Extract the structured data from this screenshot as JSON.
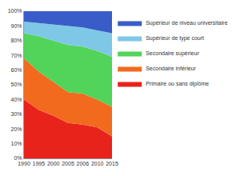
{
  "chart_data": {
    "type": "area",
    "stacked": true,
    "grid": false,
    "legend": "right",
    "categories": [
      "1990",
      "1995",
      "2000",
      "2005",
      "2006",
      "2010",
      "2015"
    ],
    "ylim": [
      0,
      100
    ],
    "yticks": [
      {
        "value": 0,
        "label": "0%"
      },
      {
        "value": 10,
        "label": "10%"
      },
      {
        "value": 20,
        "label": "20%"
      },
      {
        "value": 30,
        "label": "30%"
      },
      {
        "value": 40,
        "label": "40%"
      },
      {
        "value": 50,
        "label": "50%"
      },
      {
        "value": 60,
        "label": "60%"
      },
      {
        "value": 70,
        "label": "70%"
      },
      {
        "value": 80,
        "label": "80%"
      },
      {
        "value": 90,
        "label": "90%"
      },
      {
        "value": 100,
        "label": "100%"
      }
    ],
    "series": [
      {
        "name": "Primaire ou sans diplôme",
        "color": "#e8231b",
        "values": [
          40,
          33,
          29,
          24,
          23,
          21,
          15
        ]
      },
      {
        "name": "Secondaire inférieur",
        "color": "#f26a1e",
        "values": [
          28,
          26,
          23,
          21,
          21,
          19,
          20
        ]
      },
      {
        "name": "Secondaire supérieur",
        "color": "#52d35a",
        "values": [
          17,
          24,
          28,
          32,
          32,
          33,
          34
        ]
      },
      {
        "name": "Supérieur de type court",
        "color": "#7fc7e6",
        "values": [
          8,
          9,
          11,
          13,
          13,
          14,
          16
        ]
      },
      {
        "name": "Supérieur de niveau universitaire",
        "color": "#3a5cc8",
        "values": [
          7,
          8,
          9,
          10,
          11,
          13,
          15
        ]
      }
    ]
  }
}
